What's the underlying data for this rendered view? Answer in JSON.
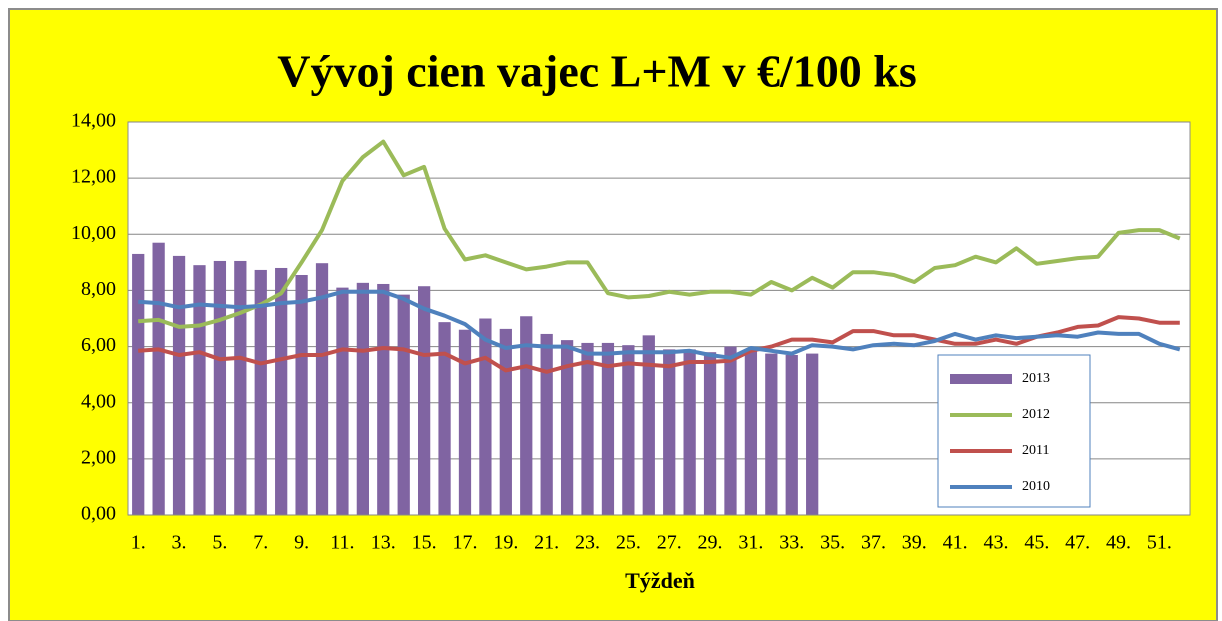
{
  "chart_data": {
    "type": "bar",
    "title": "Vývoj cien vajec L+M v €/100 ks",
    "x_label": "Týždeň",
    "categories": [
      "1.",
      null,
      "3.",
      null,
      "5.",
      null,
      "7.",
      null,
      "9.",
      null,
      "11.",
      null,
      "13.",
      null,
      "15.",
      null,
      "17.",
      null,
      "19.",
      null,
      "21.",
      null,
      "23.",
      null,
      "25.",
      null,
      "27.",
      null,
      "29.",
      null,
      "31.",
      null,
      "33.",
      null,
      "35.",
      null,
      "37.",
      null,
      "39.",
      null,
      "41.",
      null,
      "43.",
      null,
      "45.",
      null,
      "47.",
      null,
      "49.",
      null,
      "51.",
      null
    ],
    "series": [
      {
        "name": "2013",
        "type": "bar",
        "color": "#8064a2",
        "values": [
          9.3,
          9.7,
          9.23,
          8.9,
          9.05,
          9.05,
          8.73,
          8.8,
          8.55,
          8.97,
          8.1,
          8.27,
          8.23,
          7.85,
          8.15,
          6.87,
          6.6,
          7.0,
          6.63,
          7.08,
          6.45,
          6.23,
          6.13,
          6.13,
          6.05,
          6.4,
          5.9,
          5.9,
          5.8,
          6.0,
          5.9,
          5.75,
          5.7,
          5.75,
          null,
          null,
          null,
          null,
          null,
          null,
          null,
          null,
          null,
          null,
          null,
          null,
          null,
          null,
          null,
          null,
          null,
          null
        ]
      },
      {
        "name": "2012",
        "type": "line",
        "color": "#9bbb59",
        "values": [
          6.9,
          6.95,
          6.7,
          6.75,
          6.95,
          7.2,
          7.5,
          7.9,
          9.0,
          10.15,
          11.9,
          12.75,
          13.3,
          12.1,
          12.4,
          10.2,
          9.1,
          9.25,
          9.0,
          8.75,
          8.85,
          9.0,
          9.0,
          7.9,
          7.75,
          7.8,
          7.95,
          7.85,
          7.95,
          7.95,
          7.85,
          8.3,
          8.0,
          8.45,
          8.1,
          8.65,
          8.65,
          8.55,
          8.3,
          8.8,
          8.9,
          9.2,
          9.0,
          9.5,
          8.95,
          9.05,
          9.15,
          9.2,
          10.05,
          10.15,
          10.15,
          9.85
        ]
      },
      {
        "name": "2011",
        "type": "line",
        "color": "#c0504d",
        "values": [
          5.85,
          5.9,
          5.7,
          5.8,
          5.55,
          5.6,
          5.4,
          5.55,
          5.7,
          5.7,
          5.9,
          5.85,
          5.95,
          5.9,
          5.7,
          5.75,
          5.4,
          5.6,
          5.15,
          5.3,
          5.1,
          5.3,
          5.45,
          5.3,
          5.4,
          5.35,
          5.3,
          5.45,
          5.45,
          5.5,
          5.85,
          6.0,
          6.25,
          6.25,
          6.15,
          6.55,
          6.55,
          6.4,
          6.4,
          6.25,
          6.1,
          6.1,
          6.25,
          6.1,
          6.35,
          6.5,
          6.7,
          6.75,
          7.05,
          7.0,
          6.85,
          6.85
        ]
      },
      {
        "name": "2010",
        "type": "line",
        "color": "#4f81bd",
        "values": [
          7.6,
          7.55,
          7.4,
          7.5,
          7.45,
          7.4,
          7.45,
          7.55,
          7.6,
          7.75,
          7.95,
          7.95,
          7.95,
          7.7,
          7.35,
          7.1,
          6.8,
          6.25,
          5.95,
          6.05,
          6.0,
          6.0,
          5.75,
          5.75,
          5.8,
          5.8,
          5.8,
          5.85,
          5.7,
          5.6,
          5.95,
          5.85,
          5.75,
          6.05,
          6.0,
          5.9,
          6.05,
          6.1,
          6.05,
          6.2,
          6.45,
          6.25,
          6.4,
          6.3,
          6.35,
          6.4,
          6.35,
          6.5,
          6.45,
          6.45,
          6.1,
          5.9
        ]
      }
    ],
    "ylim": [
      0,
      14
    ],
    "yticks": [
      {
        "value": 0,
        "label": "0,00"
      },
      {
        "value": 2,
        "label": "2,00"
      },
      {
        "value": 4,
        "label": "4,00"
      },
      {
        "value": 6,
        "label": "6,00"
      },
      {
        "value": 8,
        "label": "8,00"
      },
      {
        "value": 10,
        "label": "10,00"
      },
      {
        "value": 12,
        "label": "12,00"
      },
      {
        "value": 14,
        "label": "14,00"
      }
    ],
    "grid": true,
    "legend": "lower right"
  }
}
